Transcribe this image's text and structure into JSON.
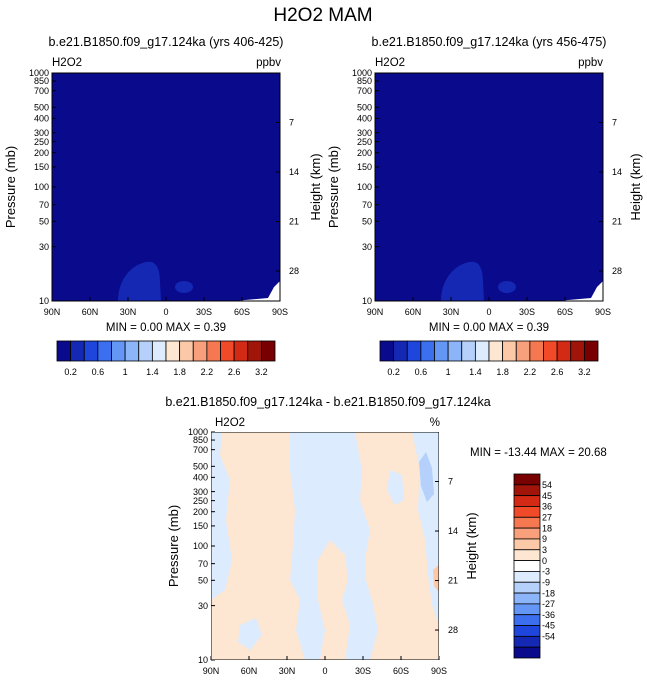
{
  "title": "H2O2 MAM",
  "chart_data": [
    {
      "type": "heatmap",
      "title": "b.e21.B1850.f09_g17.124ka (yrs 406-425)",
      "left_label": "H2O2",
      "right_label": "ppbv",
      "xlabel": "",
      "ylabel": "Pressure (mb)",
      "ylabel_right": "Height (km)",
      "x_ticks": [
        "90N",
        "60N",
        "30N",
        "0",
        "30S",
        "60S",
        "90S"
      ],
      "x_values": [
        90,
        60,
        30,
        0,
        -30,
        -60,
        -90
      ],
      "y_ticks": [
        "10",
        "30",
        "50",
        "70",
        "100",
        "150",
        "200",
        "250",
        "300",
        "400",
        "500",
        "700",
        "850",
        "1000"
      ],
      "y_values": [
        10,
        30,
        50,
        70,
        100,
        150,
        200,
        250,
        300,
        400,
        500,
        700,
        850,
        1000
      ],
      "y_ticks_right": [
        "28",
        "21",
        "14",
        "7"
      ],
      "y_values_right": [
        28,
        21,
        14,
        7
      ],
      "ylim": [
        1000,
        10
      ],
      "y_scale": "log",
      "stats": "MIN =  0.00  MAX =  0.39",
      "colorbar_labels": [
        "0.2",
        "0.6",
        "1",
        "1.4",
        "1.8",
        "2.2",
        "2.6",
        "3.2"
      ]
    },
    {
      "type": "heatmap",
      "title": "b.e21.B1850.f09_g17.124ka (yrs 456-475)",
      "left_label": "H2O2",
      "right_label": "ppbv",
      "xlabel": "",
      "ylabel": "Pressure (mb)",
      "ylabel_right": "Height (km)",
      "x_ticks": [
        "90N",
        "60N",
        "30N",
        "0",
        "30S",
        "60S",
        "90S"
      ],
      "x_values": [
        90,
        60,
        30,
        0,
        -30,
        -60,
        -90
      ],
      "y_ticks": [
        "10",
        "30",
        "50",
        "70",
        "100",
        "150",
        "200",
        "250",
        "300",
        "400",
        "500",
        "700",
        "850",
        "1000"
      ],
      "y_values": [
        10,
        30,
        50,
        70,
        100,
        150,
        200,
        250,
        300,
        400,
        500,
        700,
        850,
        1000
      ],
      "y_ticks_right": [
        "28",
        "21",
        "14",
        "7"
      ],
      "y_values_right": [
        28,
        21,
        14,
        7
      ],
      "ylim": [
        1000,
        10
      ],
      "y_scale": "log",
      "stats": "MIN =  0.00  MAX =  0.39",
      "colorbar_labels": [
        "0.2",
        "0.6",
        "1",
        "1.4",
        "1.8",
        "2.2",
        "2.6",
        "3.2"
      ]
    },
    {
      "type": "heatmap",
      "title": "b.e21.B1850.f09_g17.124ka - b.e21.B1850.f09_g17.124ka",
      "left_label": "H2O2",
      "right_label": "%",
      "xlabel": "",
      "ylabel": "Pressure (mb)",
      "ylabel_right": "Height (km)",
      "x_ticks": [
        "90N",
        "60N",
        "30N",
        "0",
        "30S",
        "60S",
        "90S"
      ],
      "x_values": [
        90,
        60,
        30,
        0,
        -30,
        -60,
        -90
      ],
      "y_ticks": [
        "10",
        "30",
        "50",
        "70",
        "100",
        "150",
        "200",
        "250",
        "300",
        "400",
        "500",
        "700",
        "850",
        "1000"
      ],
      "y_values": [
        10,
        30,
        50,
        70,
        100,
        150,
        200,
        250,
        300,
        400,
        500,
        700,
        850,
        1000
      ],
      "y_ticks_right": [
        "28",
        "21",
        "14",
        "7"
      ],
      "y_values_right": [
        28,
        21,
        14,
        7
      ],
      "ylim": [
        1000,
        10
      ],
      "y_scale": "log",
      "stats": "MIN = -13.44  MAX =  20.68",
      "colorbar_labels": [
        "54",
        "45",
        "36",
        "27",
        "18",
        "9",
        "3",
        "0",
        "-3",
        "-9",
        "-18",
        "-27",
        "-36",
        "-45",
        "-54"
      ]
    }
  ],
  "colors": {
    "ppbv_palette": [
      "#0a0a8c",
      "#1428b4",
      "#1e46dc",
      "#3c6ef0",
      "#6496f5",
      "#8cb4f8",
      "#b4d0fb",
      "#dcebfd",
      "#fde6d2",
      "#fbc8a8",
      "#f8a07c",
      "#f57850",
      "#f04a28",
      "#d22a14",
      "#a0140a",
      "#780000"
    ],
    "diff_palette": [
      "#780000",
      "#a0140a",
      "#d22a14",
      "#f04a28",
      "#f57850",
      "#f8a07c",
      "#fbc8a8",
      "#fde6d2",
      "#ffffff",
      "#dcebfd",
      "#b4d0fb",
      "#8cb4f8",
      "#6496f5",
      "#3c6ef0",
      "#1e46dc",
      "#1428b4",
      "#0a0a8c"
    ],
    "field_low": "#0a0a8c",
    "field_feature": "#1428b4",
    "diff_positive": "#fde6d2",
    "diff_negative": "#dcebfd",
    "diff_negative_strong": "#b4d0fb",
    "diff_positive_strong": "#fbc8a8"
  }
}
